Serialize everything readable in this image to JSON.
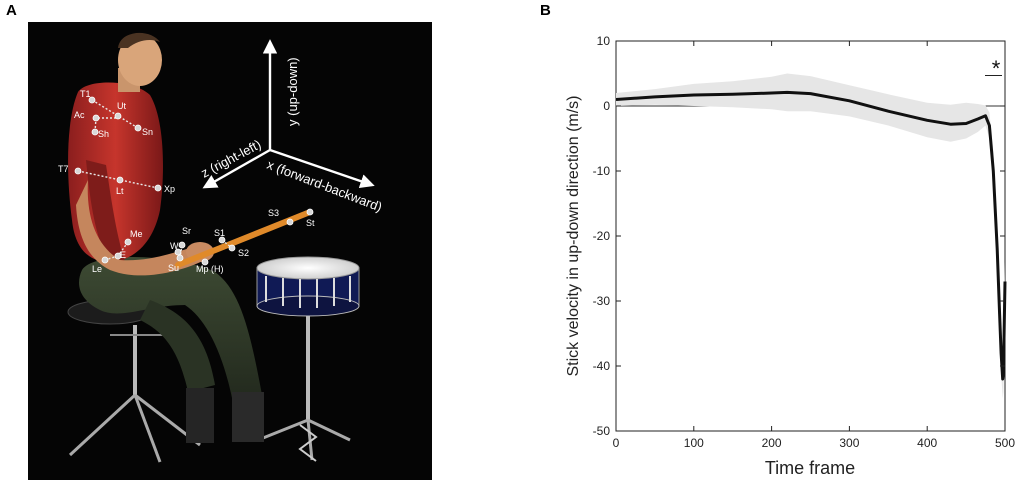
{
  "panels": {
    "a_label": "A",
    "b_label": "B"
  },
  "figure_a": {
    "axes": {
      "y": "y (up-down)",
      "z": "z (right-left)",
      "x": "x (forward-backward)"
    },
    "markers": [
      "T1",
      "Ut",
      "Ac",
      "Sh",
      "Sn",
      "T7",
      "Lt",
      "Xp",
      "Me",
      "E",
      "Le",
      "Sr",
      "W",
      "Su",
      "S1",
      "S2",
      "Mp (H)",
      "S3",
      "St"
    ]
  },
  "chart_data": {
    "type": "line",
    "title": "",
    "xlabel": "Time frame",
    "ylabel": "Stick velocity in up-down direction (m/s)",
    "xlim": [
      0,
      500
    ],
    "ylim": [
      -50,
      10
    ],
    "xticks": [
      0,
      100,
      200,
      300,
      400,
      500
    ],
    "yticks": [
      10,
      0,
      -10,
      -20,
      -30,
      -40,
      -50
    ],
    "annotation": "*",
    "series": [
      {
        "color": "#111111",
        "x": [
          0,
          50,
          100,
          150,
          200,
          220,
          250,
          300,
          350,
          400,
          430,
          450,
          465,
          475,
          480,
          485,
          490,
          493,
          495,
          497,
          498,
          500
        ],
        "y": [
          1.0,
          1.4,
          1.7,
          1.8,
          2.0,
          2.1,
          1.9,
          0.8,
          -0.8,
          -2.2,
          -2.8,
          -2.7,
          -2.0,
          -1.5,
          -3.0,
          -10.0,
          -22.0,
          -32.0,
          -38.0,
          -42.0,
          -41.0,
          -27.0
        ],
        "band_upper": [
          2.0,
          2.6,
          3.4,
          3.8,
          4.5,
          5.0,
          4.6,
          3.2,
          1.8,
          0.5,
          0.2,
          0.5,
          0.3,
          0.1,
          -1.0,
          -7.0,
          -19.0,
          -29.0,
          -35.0,
          -39.0,
          -38.0,
          -24.0
        ],
        "band_lower": [
          0.0,
          0.2,
          0.0,
          -0.2,
          -0.5,
          -0.8,
          -0.8,
          -1.6,
          -3.0,
          -4.8,
          -5.5,
          -5.0,
          -4.0,
          -3.0,
          -5.0,
          -13.0,
          -25.0,
          -35.0,
          -41.0,
          -45.0,
          -44.0,
          -30.0
        ]
      }
    ],
    "grid": false,
    "legend": "none"
  }
}
